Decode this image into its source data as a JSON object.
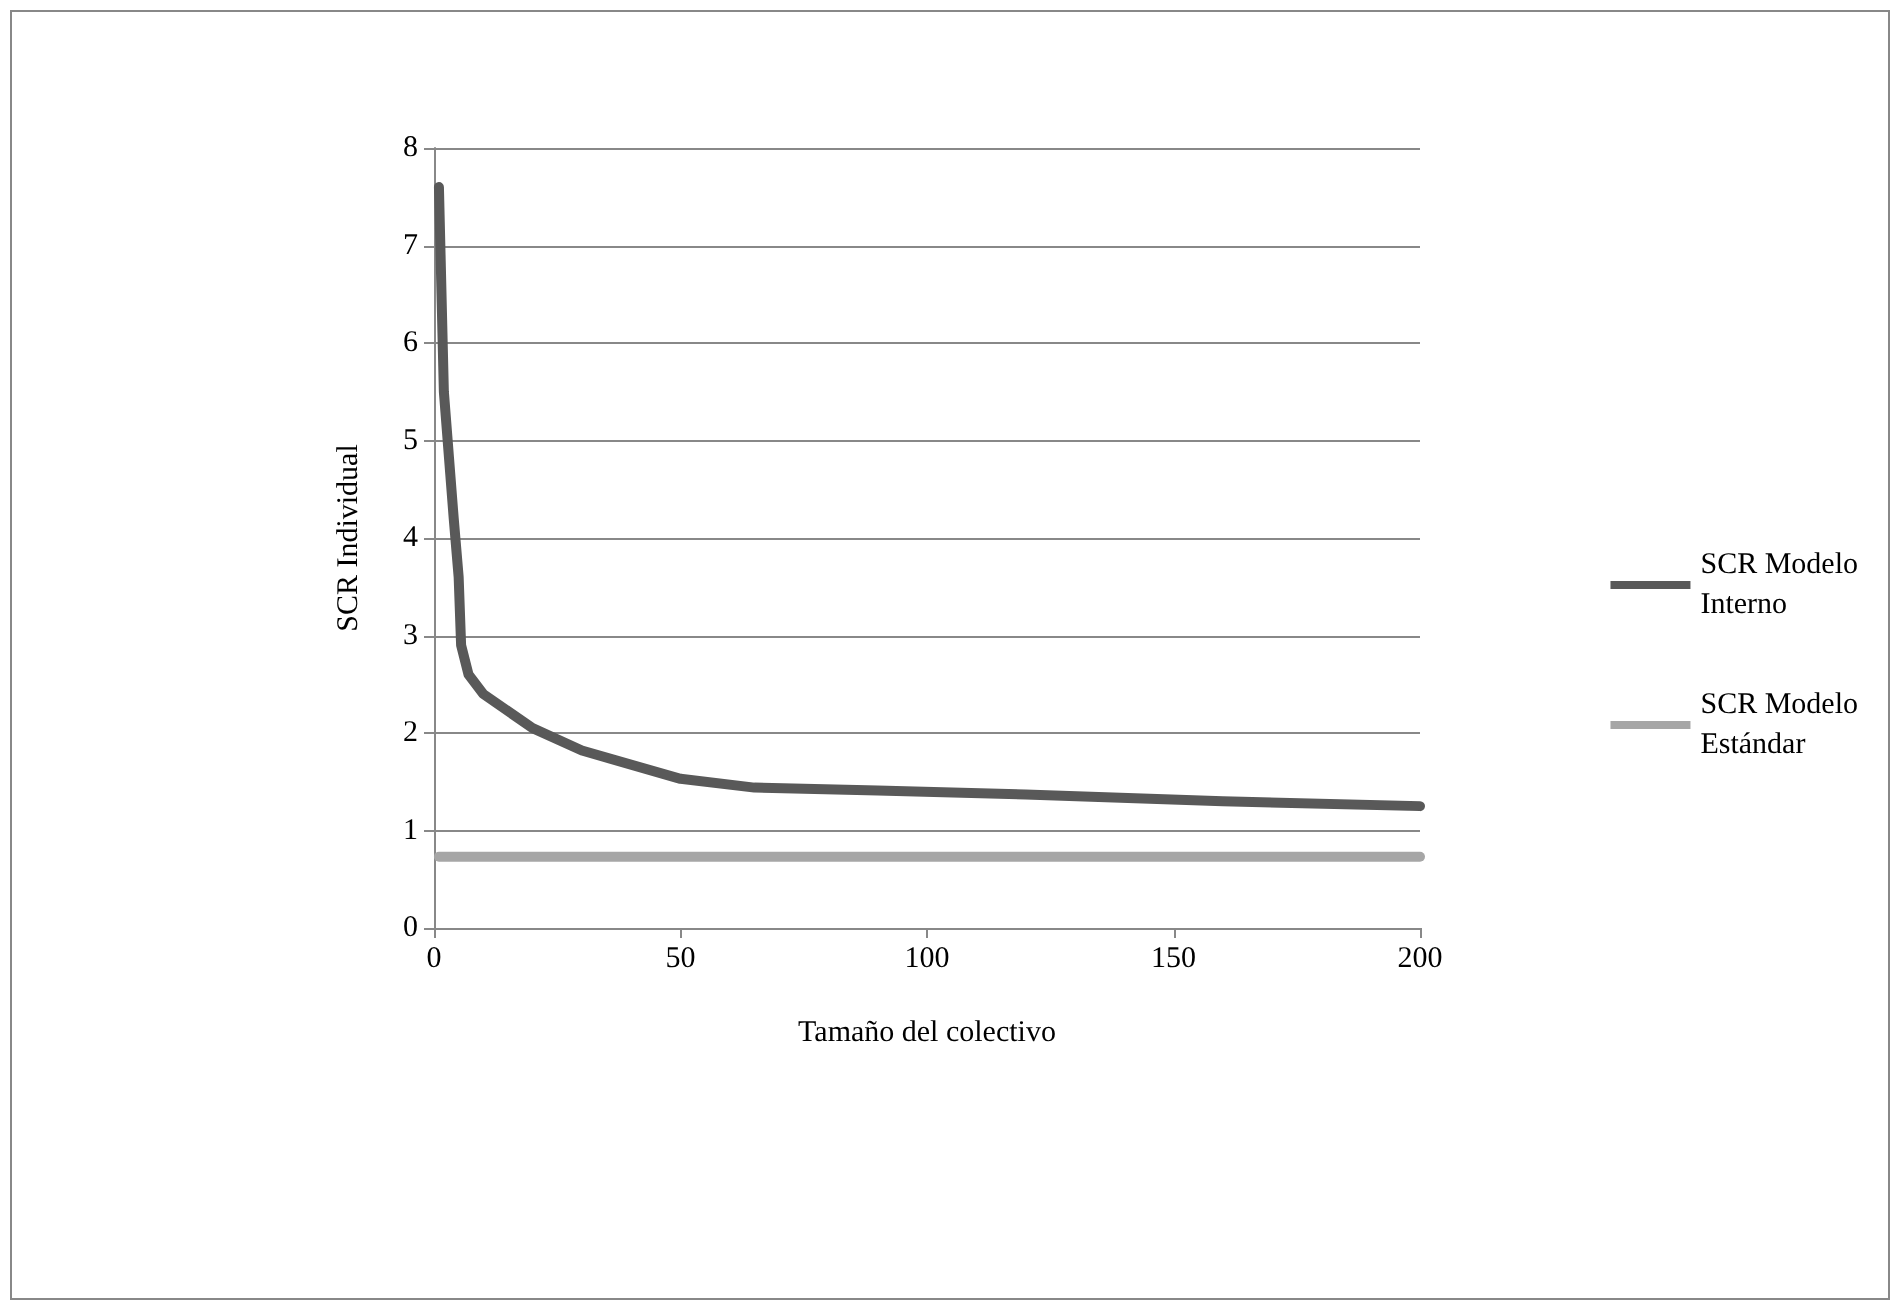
{
  "chart_data": {
    "type": "line",
    "xlabel": "Tamaño del colectivo",
    "ylabel": "SCR Individual",
    "xlim": [
      0,
      200
    ],
    "xticks": [
      0,
      50,
      100,
      150,
      200
    ],
    "ylim": [
      0,
      8
    ],
    "yticks": [
      0,
      1,
      2,
      3,
      4,
      5,
      6,
      7,
      8
    ],
    "grid": "y",
    "legend": "right",
    "marker": "none",
    "line_style": "solid",
    "series": [
      {
        "name": "SCR Modelo Interno",
        "color": "#595959",
        "x": [
          1,
          2,
          4,
          5,
          5.5,
          7,
          10,
          20,
          30,
          50,
          65,
          90,
          120,
          160,
          200
        ],
        "values": [
          7.6,
          5.5,
          4.2,
          3.6,
          2.9,
          2.6,
          2.4,
          2.05,
          1.82,
          1.53,
          1.44,
          1.41,
          1.37,
          1.3,
          1.25
        ]
      },
      {
        "name": "SCR Modelo Estándar",
        "color": "#a6a6a6",
        "x": [
          1,
          200
        ],
        "values": [
          0.73,
          0.73
        ]
      }
    ]
  }
}
